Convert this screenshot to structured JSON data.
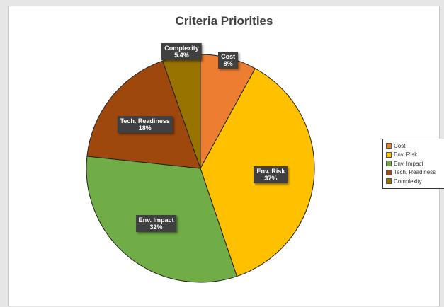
{
  "chart_data": {
    "type": "pie",
    "title": "Criteria Priorities",
    "categories": [
      "Cost",
      "Env. Risk",
      "Env. Impact",
      "Tech. Readiness",
      "Complexity"
    ],
    "values": [
      8,
      37,
      32,
      18,
      5.4
    ],
    "value_labels": [
      "8%",
      "37%",
      "32%",
      "18%",
      "5.4%"
    ],
    "colors": [
      "#ed7d31",
      "#ffc000",
      "#70ad47",
      "#9e480e",
      "#997300"
    ],
    "legend_position": "right"
  }
}
